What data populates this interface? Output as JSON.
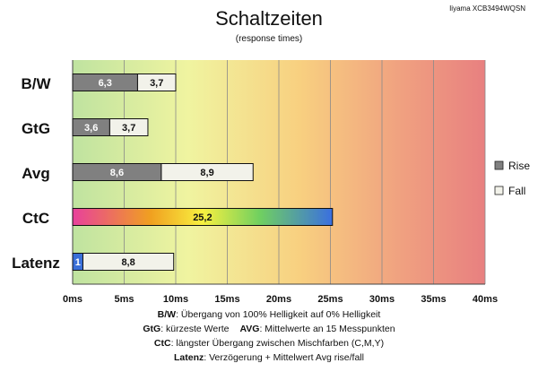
{
  "chart_data": {
    "type": "bar",
    "orientation": "horizontal",
    "stacked": true,
    "title": "Schaltzeiten",
    "subtitle": "(response times)",
    "model": "Iiyama XCB3494WQSN",
    "xlim": [
      0,
      40
    ],
    "x_ticks": [
      "0ms",
      "5ms",
      "10ms",
      "15ms",
      "20ms",
      "25ms",
      "30ms",
      "35ms",
      "40ms"
    ],
    "categories": [
      "B/W",
      "GtG",
      "Avg",
      "CtC",
      "Latenz"
    ],
    "series": [
      {
        "name": "Rise",
        "values": [
          6.3,
          3.6,
          8.6,
          null,
          1
        ],
        "labels": [
          "6,3",
          "3,6",
          "8,6",
          "",
          "1"
        ]
      },
      {
        "name": "Fall",
        "values": [
          3.7,
          3.7,
          8.9,
          null,
          8.8
        ],
        "labels": [
          "3,7",
          "3,7",
          "8,9",
          "",
          "8,8"
        ]
      },
      {
        "name": "",
        "values": [
          null,
          null,
          null,
          25.2,
          null
        ],
        "labels": [
          "",
          "",
          "",
          "25,2",
          ""
        ]
      }
    ],
    "legend": {
      "position": "right",
      "entries": [
        "Rise",
        "Fall"
      ]
    },
    "colors": {
      "rise": "#808080",
      "fall": "#f2f2ea",
      "latenz_rise": "#3a6fd8",
      "ctc_gradient": [
        "#e8409c",
        "#f0a020",
        "#f8f040",
        "#70d060",
        "#3a6fe0"
      ],
      "bg_gradient": [
        "#bfe3a0",
        "#f0f4a0",
        "#f8d080",
        "#f0a080",
        "#e88080"
      ]
    },
    "grid": true,
    "notes": [
      {
        "key": "B/W",
        "text": ":  Übergang von 100% Helligkeit auf 0% Helligkeit"
      },
      {
        "key": "GtG",
        "text": ": kürzeste  Werte",
        "key2": "AVG",
        "text2": ": Mittelwerte  an 15 Messpunkten"
      },
      {
        "key": "CtC",
        "text": ": längster Übergang  zwischen Mischfarben (C,M,Y)"
      },
      {
        "key": "Latenz",
        "text": ": Verzögerung  + Mittelwert  Avg rise/fall"
      }
    ]
  }
}
